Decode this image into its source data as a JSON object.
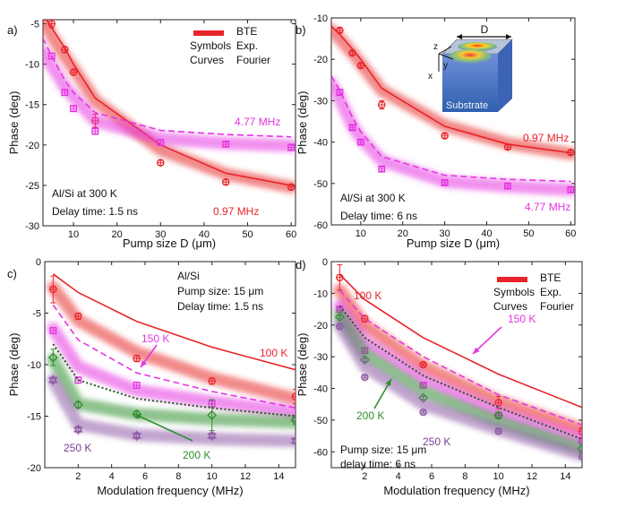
{
  "chart_data": [
    {
      "id": "a",
      "type": "line",
      "panel_label": "a)",
      "xlabel": "Pump size D (μm)",
      "ylabel": "Phase (deg)",
      "xlim": [
        3,
        61
      ],
      "ylim": [
        -30,
        -4.5
      ],
      "xticks": [
        10,
        20,
        30,
        40,
        50,
        60
      ],
      "yticks": [
        -5,
        -10,
        -15,
        -20,
        -25,
        -30
      ],
      "annotations": [
        "Al/Si at 300 K",
        "Delay time: 1.5 ns"
      ],
      "legend": {
        "col1": "BTE",
        "col2_head": "Symbols",
        "col2_val": "Exp.",
        "col3_head": "Curves",
        "col3_val": "Fourier"
      },
      "series": [
        {
          "name": "0.97 MHz",
          "color": "#e8242a",
          "marker": "circle",
          "bte_x": [
            3,
            5,
            8,
            10,
            15,
            30,
            45,
            60
          ],
          "bte_y": [
            -4.6,
            -6.5,
            -9,
            -10.5,
            -14.5,
            -20.6,
            -23.6,
            -25.2
          ],
          "fourier_x": [
            3,
            5,
            8,
            10,
            15,
            30,
            45,
            60
          ],
          "fourier_y": [
            -3.8,
            -5.5,
            -8,
            -10,
            -14.2,
            -20,
            -23.5,
            -25
          ],
          "exp_x": [
            5,
            8,
            10,
            15,
            30,
            45,
            60
          ],
          "exp_y": [
            -5,
            -8.2,
            -11,
            -17,
            -22.2,
            -24.6,
            -25.2
          ],
          "exp_err": [
            0.5,
            0.3,
            0.3,
            0.8,
            0.3,
            0.3,
            0.3
          ]
        },
        {
          "name": "4.77 MHz",
          "color": "#e535e2",
          "marker": "square",
          "bte_x": [
            3,
            5,
            8,
            10,
            15,
            30,
            45,
            60
          ],
          "bte_y": [
            -8.5,
            -10.2,
            -12.8,
            -14,
            -17,
            -19.2,
            -19.8,
            -20.1
          ],
          "fourier_x": [
            3,
            5,
            8,
            10,
            15,
            30,
            45,
            60
          ],
          "fourier_y": [
            -6.8,
            -9,
            -12,
            -13.5,
            -16,
            -18.2,
            -18.7,
            -19
          ],
          "exp_x": [
            5,
            8,
            10,
            15,
            30,
            45,
            60
          ],
          "exp_y": [
            -9,
            -13.5,
            -15.5,
            -18.3,
            -19.7,
            -19.9,
            -20.3
          ],
          "exp_err": [
            0.3,
            0.3,
            0.3,
            0.3,
            0.3,
            0.3,
            0.3
          ]
        }
      ],
      "labels": [
        "4.77 MHz",
        "0.97 MHz"
      ]
    },
    {
      "id": "b",
      "type": "line",
      "panel_label": "b)",
      "xlabel": "Pump size D (μm)",
      "ylabel": "Phase (deg)",
      "xlim": [
        3,
        61
      ],
      "ylim": [
        -60,
        -10
      ],
      "xticks": [
        10,
        20,
        30,
        40,
        50,
        60
      ],
      "yticks": [
        -10,
        -20,
        -30,
        -40,
        -50,
        -60
      ],
      "annotations": [
        "Al/Si at 300 K",
        "Delay time: 6 ns"
      ],
      "inset": {
        "labels": [
          "D",
          "z",
          "y",
          "x",
          "Substrate"
        ]
      },
      "series": [
        {
          "name": "0.97 MHz",
          "color": "#e8242a",
          "marker": "circle",
          "bte_x": [
            3,
            5,
            8,
            10,
            15,
            30,
            45,
            60
          ],
          "bte_y": [
            -13,
            -15,
            -18.5,
            -21,
            -27.5,
            -36,
            -40.3,
            -42.8
          ],
          "fourier_x": [
            3,
            5,
            8,
            10,
            15,
            30,
            45,
            60
          ],
          "fourier_y": [
            -12,
            -14,
            -17.5,
            -20,
            -27,
            -36.2,
            -40.5,
            -42.6
          ],
          "exp_x": [
            5,
            8,
            10,
            15,
            30,
            45,
            60
          ],
          "exp_y": [
            -13,
            -18.5,
            -21.5,
            -31,
            -38.5,
            -41.2,
            -42.5
          ],
          "exp_err": [
            0.5,
            0.5,
            0.5,
            1,
            0.5,
            0.5,
            0.5
          ]
        },
        {
          "name": "4.77 MHz",
          "color": "#e535e2",
          "marker": "square",
          "bte_x": [
            3,
            5,
            8,
            10,
            15,
            30,
            45,
            60
          ],
          "bte_y": [
            -26,
            -29.5,
            -36,
            -39,
            -44.5,
            -49.5,
            -50.7,
            -51.5
          ],
          "fourier_x": [
            3,
            5,
            8,
            10,
            15,
            30,
            45,
            60
          ],
          "fourier_y": [
            -24,
            -27.5,
            -34,
            -37.5,
            -43.5,
            -48,
            -49,
            -49.5
          ],
          "exp_x": [
            5,
            8,
            10,
            15,
            30,
            45,
            60
          ],
          "exp_y": [
            -28,
            -36.5,
            -40,
            -46.5,
            -49.8,
            -50.6,
            -51.5
          ],
          "exp_err": [
            0.5,
            0.5,
            0.5,
            0.5,
            0.5,
            0.5,
            0.5
          ]
        }
      ],
      "labels": [
        "0.97 MHz",
        "4.77 MHz"
      ]
    },
    {
      "id": "c",
      "type": "line",
      "panel_label": "c)",
      "xlabel": "Modulation frequency (MHz)",
      "ylabel": "Phase (deg)",
      "xlim": [
        0,
        15
      ],
      "ylim": [
        -20,
        0
      ],
      "xticks": [
        2,
        4,
        6,
        8,
        10,
        12,
        14
      ],
      "yticks": [
        0,
        -5,
        -10,
        -15,
        -20
      ],
      "annotations": [
        "Al/Si",
        "Pump size: 15 μm",
        "Delay time: 1.5 ns"
      ],
      "series": [
        {
          "name": "100 K",
          "color": "#e8242a",
          "marker": "circle",
          "fourier_style": "solid",
          "bte_x": [
            0.5,
            2,
            5.5,
            10,
            15
          ],
          "bte_y": [
            -2.5,
            -5.7,
            -8.8,
            -11.3,
            -13.3
          ],
          "fourier_x": [
            0.5,
            2,
            5.5,
            10,
            15
          ],
          "fourier_y": [
            -1.2,
            -3,
            -5.8,
            -8.3,
            -10.5
          ],
          "exp_x": [
            0.5,
            2,
            5.5,
            10,
            15
          ],
          "exp_y": [
            -2.7,
            -5.3,
            -9.4,
            -11.6,
            -13.1
          ],
          "exp_err": [
            1.3,
            0.3,
            0.3,
            0.3,
            0.7
          ]
        },
        {
          "name": "150 K",
          "color": "#e535e2",
          "marker": "square",
          "fourier_style": "dashed",
          "bte_x": [
            0.5,
            2,
            5.5,
            10,
            15
          ],
          "bte_y": [
            -6.5,
            -10.2,
            -12.5,
            -13.6,
            -14.6
          ],
          "fourier_x": [
            0.5,
            2,
            5.5,
            10,
            15
          ],
          "fourier_y": [
            -4.2,
            -7.6,
            -10.8,
            -12.6,
            -14.2
          ],
          "exp_x": [
            0.5,
            2,
            5.5,
            10,
            15
          ],
          "exp_y": [
            -6.7,
            -11.5,
            -12,
            -13.8,
            -15.2
          ],
          "exp_err": [
            0.3,
            0.3,
            0.3,
            0.3,
            0.3
          ]
        },
        {
          "name": "200 K",
          "color": "#2f8f2f",
          "marker": "diamond",
          "fourier_style": "dotted",
          "bte_x": [
            0.5,
            2,
            5.5,
            10,
            15
          ],
          "bte_y": [
            -9.5,
            -13.8,
            -14.8,
            -15.3,
            -15.6
          ],
          "fourier_x": [
            0.5,
            2,
            5.5,
            10,
            15
          ],
          "fourier_y": [
            -8,
            -11.5,
            -13.3,
            -14.2,
            -15
          ],
          "exp_x": [
            0.5,
            2,
            5.5,
            10,
            15
          ],
          "exp_y": [
            -9.3,
            -13.9,
            -14.8,
            -14.9,
            -15.4
          ],
          "exp_err": [
            0.8,
            0.3,
            0.3,
            1.5,
            0.4
          ]
        },
        {
          "name": "250 K",
          "color": "#8e5aa5",
          "marker": "hexagram",
          "fourier_style": "none",
          "bte_x": [
            0.5,
            2,
            5.5,
            10,
            15
          ],
          "bte_y": [
            -11.5,
            -15.8,
            -16.8,
            -17.2,
            -17.4
          ],
          "fourier_x": [],
          "fourier_y": [],
          "exp_x": [
            0.5,
            2,
            5.5,
            10,
            15
          ],
          "exp_y": [
            -11.5,
            -16.3,
            -16.9,
            -16.9,
            -17.4
          ],
          "exp_err": [
            0.3,
            0.3,
            0.3,
            0.3,
            0.3
          ]
        }
      ],
      "labels": [
        "100 K",
        "150 K",
        "200 K",
        "250 K"
      ]
    },
    {
      "id": "d",
      "type": "line",
      "panel_label": "d)",
      "xlabel": "Modulation frequency (MHz)",
      "ylabel": "Phase (deg)",
      "xlim": [
        0,
        15
      ],
      "ylim": [
        -65,
        0
      ],
      "xticks": [
        2,
        4,
        6,
        8,
        10,
        12,
        14
      ],
      "yticks": [
        0,
        -10,
        -20,
        -30,
        -40,
        -50,
        -60
      ],
      "annotations": [
        "Pump size: 15 μm",
        "delay time: 6 ns"
      ],
      "legend": {
        "col1": "BTE",
        "col2_head": "Symbols",
        "col2_val": "Exp.",
        "col3_head": "Curves",
        "col3_val": "Fourier"
      },
      "series": [
        {
          "name": "100 K",
          "color": "#e8242a",
          "marker": "circle",
          "fourier_style": "solid",
          "bte_x": [
            0.5,
            2,
            5.5,
            10,
            15
          ],
          "bte_y": [
            -9,
            -20,
            -33,
            -44,
            -53
          ],
          "fourier_x": [
            0.5,
            2,
            5.5,
            10,
            15
          ],
          "fourier_y": [
            -4,
            -12,
            -24,
            -35.5,
            -46
          ],
          "exp_x": [
            0.5,
            2,
            5.5,
            10,
            15
          ],
          "exp_y": [
            -5,
            -18,
            -32.5,
            -44.5,
            -53.5
          ],
          "exp_err": [
            4,
            1,
            0.5,
            2,
            1
          ]
        },
        {
          "name": "150 K",
          "color": "#e535e2",
          "marker": "square",
          "fourier_style": "dashed",
          "bte_x": [
            0.5,
            2,
            5.5,
            10,
            15
          ],
          "bte_y": [
            -14,
            -25,
            -37,
            -47.5,
            -56
          ],
          "fourier_x": [
            0.5,
            2,
            5.5,
            10,
            15
          ],
          "fourier_y": [
            -9,
            -18,
            -30,
            -42,
            -51.5
          ],
          "exp_x": [
            0.5,
            2,
            5.5,
            10,
            15
          ],
          "exp_y": [
            -15,
            -28,
            -39,
            -48.5,
            -56.5
          ],
          "exp_err": [
            0.5,
            0.5,
            0.5,
            0.5,
            0.5
          ]
        },
        {
          "name": "200 K",
          "color": "#2f8f2f",
          "marker": "diamond",
          "fourier_style": "dotted",
          "bte_x": [
            0.5,
            2,
            5.5,
            10,
            15
          ],
          "bte_y": [
            -17,
            -29,
            -41,
            -50.5,
            -59
          ],
          "fourier_x": [
            0.5,
            2,
            5.5,
            10,
            15
          ],
          "fourier_y": [
            -14,
            -24,
            -36,
            -46,
            -56
          ],
          "exp_x": [
            0.5,
            2,
            5.5,
            10,
            15
          ],
          "exp_y": [
            -17.5,
            -31,
            -43,
            -48.5,
            -59
          ],
          "exp_err": [
            0.5,
            0.5,
            0.5,
            1,
            1
          ]
        },
        {
          "name": "250 K",
          "color": "#8e5aa5",
          "marker": "circle",
          "fourier_style": "none",
          "bte_x": [
            0.5,
            2,
            5.5,
            10,
            15
          ],
          "bte_y": [
            -20,
            -33,
            -45,
            -53,
            -61
          ],
          "fourier_x": [],
          "fourier_y": [],
          "exp_x": [
            0.5,
            2,
            5.5,
            10,
            15
          ],
          "exp_y": [
            -20.5,
            -36.5,
            -47.5,
            -53.5,
            -61.5
          ],
          "exp_err": [
            0.5,
            0.5,
            0.5,
            0.5,
            0.5
          ]
        }
      ],
      "labels": [
        "100 K",
        "150 K",
        "200 K",
        "250 K"
      ]
    }
  ]
}
